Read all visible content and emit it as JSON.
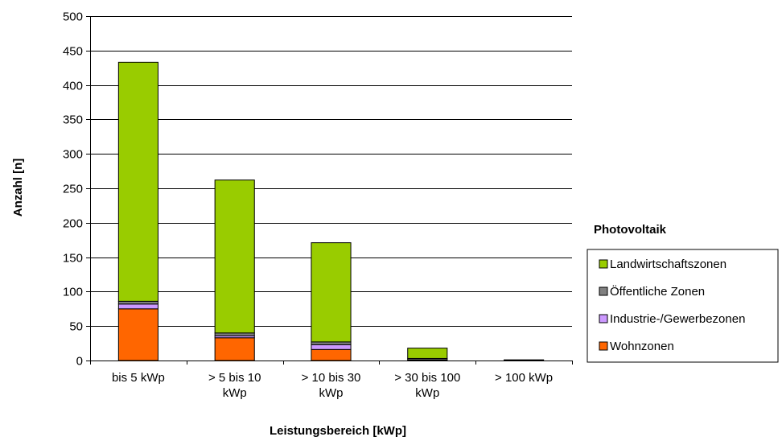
{
  "chart_data": {
    "type": "bar",
    "stacked": true,
    "categories": [
      [
        "bis 5 kWp"
      ],
      [
        "> 5 bis 10",
        "kWp"
      ],
      [
        "> 10 bis 30",
        "kWp"
      ],
      [
        "> 30 bis 100",
        "kWp"
      ],
      [
        "> 100 kWp"
      ]
    ],
    "series": [
      {
        "name": "Wohnzonen",
        "color": "#ff6600",
        "values": [
          75,
          33,
          16,
          1,
          0
        ]
      },
      {
        "name": "Industrie-/Gewerbezonen",
        "color": "#cc99ff",
        "values": [
          7,
          3,
          7,
          0,
          0
        ]
      },
      {
        "name": "Öffentliche Zonen",
        "color": "#808080",
        "values": [
          4,
          4,
          4,
          2,
          0
        ]
      },
      {
        "name": "Landwirtschaftszonen",
        "color": "#99cc00",
        "values": [
          347,
          222,
          144,
          15,
          1
        ]
      }
    ],
    "xlabel": "Leistungsbereich [kWp]",
    "ylabel": "Anzahl [n]",
    "ylim": [
      0,
      500
    ],
    "yticks": [
      0,
      50,
      100,
      150,
      200,
      250,
      300,
      350,
      400,
      450,
      500
    ],
    "grid": true,
    "legend": {
      "title": "Photovoltaik",
      "position": "right",
      "order": [
        "Landwirtschaftszonen",
        "Öffentliche Zonen",
        "Industrie-/Gewerbezonen",
        "Wohnzonen"
      ]
    }
  }
}
